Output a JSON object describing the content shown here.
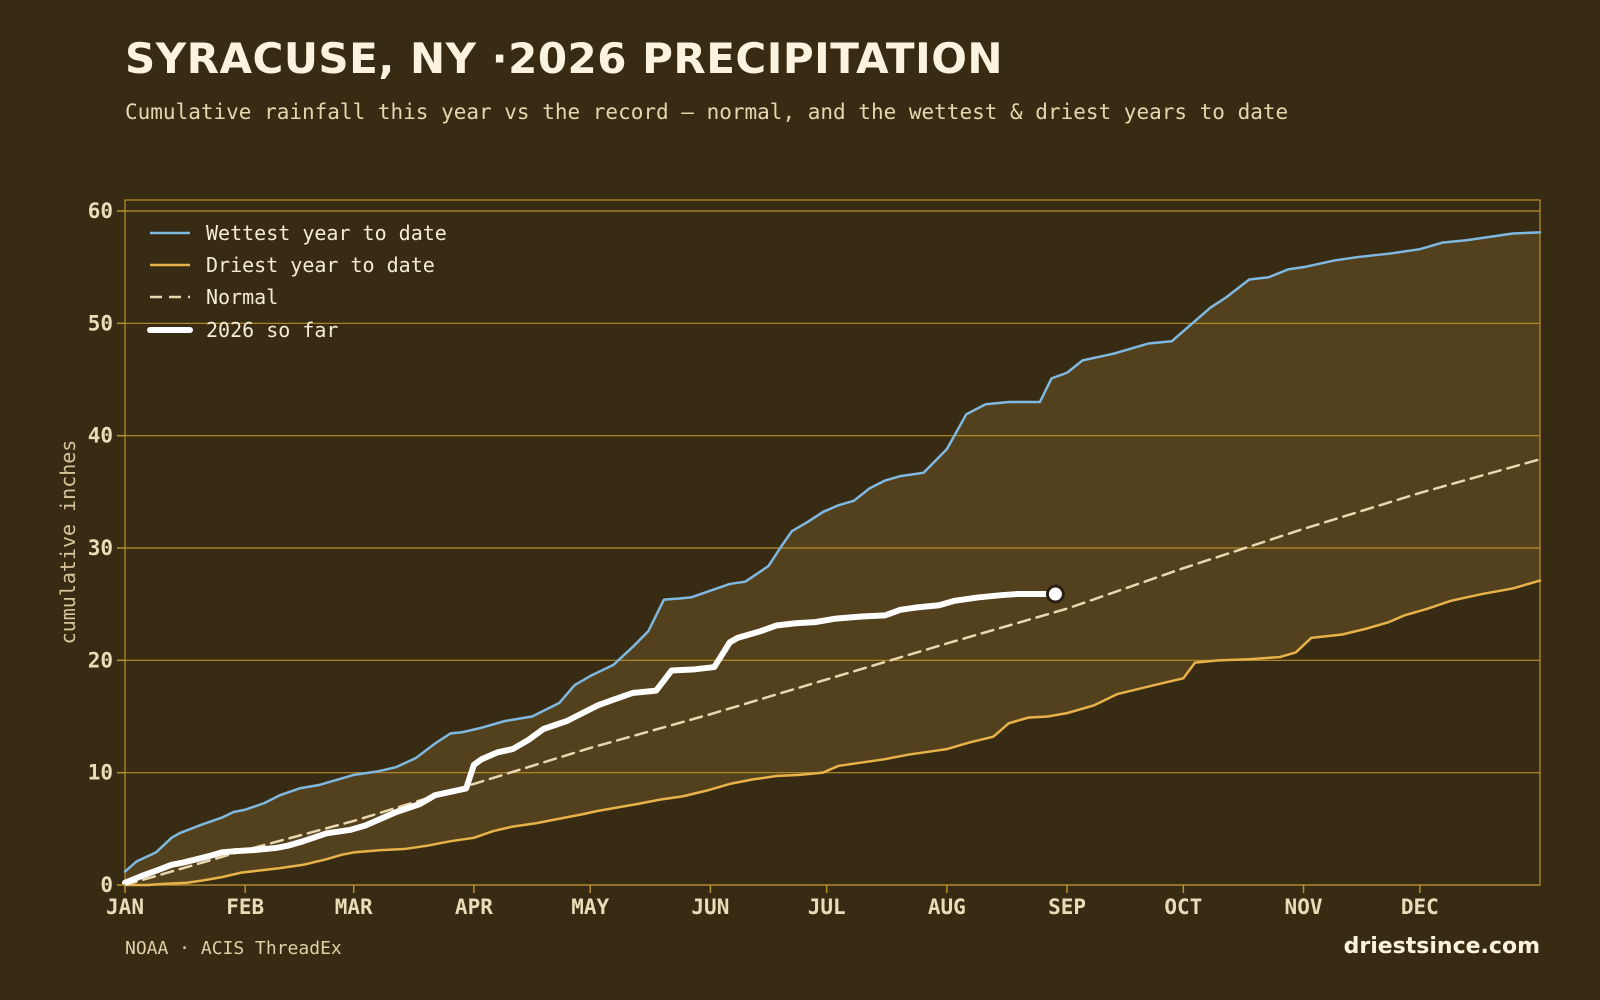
{
  "header": {
    "title": "SYRACUSE, NY ·2026 PRECIPITATION",
    "subtitle": "Cumulative rainfall this year vs the record — normal, and the wettest & driest years to date"
  },
  "footer": {
    "source": "NOAA · ACIS ThreadEx",
    "brand": "driestsince.com"
  },
  "colors": {
    "background": "#382b14",
    "band_fill": "#53401d",
    "grid": "#b8902e",
    "wettest": "#7fb8e0",
    "driest": "#e8b24a",
    "normal": "#e8d8b0",
    "current": "#ffffff"
  },
  "chart_data": {
    "type": "line",
    "title": "SYRACUSE, NY ·2026 PRECIPITATION",
    "xlabel": "",
    "ylabel": "cumulative inches",
    "xlim": [
      0,
      365
    ],
    "ylim": [
      0,
      60
    ],
    "yticks": [
      0,
      10,
      20,
      30,
      40,
      50,
      60
    ],
    "x_ticks": [
      {
        "label": "JAN",
        "day": 0
      },
      {
        "label": "FEB",
        "day": 31
      },
      {
        "label": "MAR",
        "day": 59
      },
      {
        "label": "APR",
        "day": 90
      },
      {
        "label": "MAY",
        "day": 120
      },
      {
        "label": "JUN",
        "day": 151
      },
      {
        "label": "JUL",
        "day": 181
      },
      {
        "label": "AUG",
        "day": 212
      },
      {
        "label": "SEP",
        "day": 243
      },
      {
        "label": "OCT",
        "day": 273
      },
      {
        "label": "NOV",
        "day": 304
      },
      {
        "label": "DEC",
        "day": 334
      }
    ],
    "grid": true,
    "legend": "top-left",
    "band": {
      "upper": "Wettest year to date",
      "lower": "Driest year to date"
    },
    "series": [
      {
        "name": "Wettest year to date",
        "style": "solid",
        "x": [
          0,
          3,
          8,
          12,
          14,
          20,
          25,
          28,
          31,
          36,
          40,
          45,
          50,
          56,
          59,
          65,
          70,
          75,
          80,
          84,
          87,
          92,
          98,
          105,
          112,
          116,
          120,
          126,
          131,
          135,
          139,
          143,
          146,
          151,
          156,
          160,
          166,
          169,
          172,
          176,
          180,
          184,
          188,
          192,
          196,
          200,
          206,
          212,
          217,
          222,
          228,
          236,
          239,
          243,
          247,
          255,
          264,
          270,
          280,
          284,
          290,
          295,
          300,
          304,
          312,
          318,
          326,
          334,
          340,
          346,
          352,
          358,
          365
        ],
        "y": [
          1.2,
          2.1,
          2.9,
          4.2,
          4.6,
          5.4,
          6.0,
          6.5,
          6.7,
          7.3,
          8.0,
          8.6,
          8.9,
          9.5,
          9.8,
          10.1,
          10.5,
          11.3,
          12.6,
          13.5,
          13.6,
          14.0,
          14.6,
          15.0,
          16.2,
          17.8,
          18.6,
          19.6,
          21.2,
          22.6,
          25.4,
          25.5,
          25.6,
          26.2,
          26.8,
          27.0,
          28.4,
          30.0,
          31.5,
          32.3,
          33.2,
          33.8,
          34.2,
          35.3,
          36.0,
          36.4,
          36.7,
          38.8,
          41.9,
          42.8,
          43.0,
          43.0,
          45.1,
          45.6,
          46.7,
          47.3,
          48.2,
          48.4,
          51.4,
          52.3,
          53.9,
          54.1,
          54.8,
          55.0,
          55.6,
          55.9,
          56.2,
          56.6,
          57.2,
          57.4,
          57.7,
          58.0,
          58.1
        ]
      },
      {
        "name": "Driest year to date",
        "style": "solid",
        "x": [
          0,
          6,
          10,
          16,
          20,
          25,
          30,
          35,
          40,
          46,
          52,
          56,
          59,
          66,
          72,
          78,
          84,
          90,
          95,
          100,
          106,
          112,
          118,
          122,
          127,
          132,
          138,
          144,
          150,
          156,
          162,
          168,
          174,
          180,
          184,
          190,
          196,
          202,
          206,
          212,
          218,
          224,
          228,
          233,
          238,
          243,
          250,
          256,
          262,
          268,
          273,
          276,
          282,
          290,
          298,
          302,
          306,
          314,
          320,
          326,
          330,
          336,
          342,
          350,
          358,
          365
        ],
        "y": [
          0.0,
          0.0,
          0.1,
          0.2,
          0.4,
          0.7,
          1.1,
          1.3,
          1.5,
          1.8,
          2.3,
          2.7,
          2.9,
          3.1,
          3.2,
          3.5,
          3.9,
          4.2,
          4.8,
          5.2,
          5.5,
          5.9,
          6.3,
          6.6,
          6.9,
          7.2,
          7.6,
          7.9,
          8.4,
          9.0,
          9.4,
          9.7,
          9.8,
          10.0,
          10.6,
          10.9,
          11.2,
          11.6,
          11.8,
          12.1,
          12.7,
          13.2,
          14.4,
          14.9,
          15.0,
          15.3,
          16.0,
          17.0,
          17.5,
          18.0,
          18.4,
          19.8,
          20.0,
          20.1,
          20.3,
          20.7,
          22.0,
          22.3,
          22.8,
          23.4,
          24.0,
          24.6,
          25.3,
          25.9,
          26.4,
          27.1
        ]
      },
      {
        "name": "Normal",
        "style": "dashed",
        "x": [
          0,
          31,
          59,
          90,
          120,
          151,
          181,
          212,
          243,
          273,
          304,
          334,
          365
        ],
        "y": [
          0.0,
          3.1,
          5.7,
          9.0,
          12.2,
          15.2,
          18.3,
          21.5,
          24.6,
          28.2,
          31.7,
          34.9,
          37.9
        ]
      },
      {
        "name": "2026 so far",
        "style": "solid-thick",
        "x": [
          0,
          5,
          9,
          12,
          15,
          22,
          25,
          28,
          33,
          39,
          42,
          46,
          52,
          58,
          62,
          66,
          70,
          76,
          80,
          84,
          88,
          90,
          92,
          96,
          100,
          104,
          108,
          114,
          118,
          122,
          126,
          131,
          137,
          141,
          147,
          152,
          156,
          158,
          160,
          164,
          168,
          173,
          178,
          183,
          190,
          196,
          200,
          204,
          210,
          214,
          220,
          226,
          230,
          236,
          240
        ],
        "y": [
          0.2,
          0.9,
          1.4,
          1.8,
          2.0,
          2.6,
          2.9,
          3.0,
          3.1,
          3.3,
          3.5,
          3.9,
          4.6,
          4.9,
          5.3,
          5.9,
          6.5,
          7.2,
          8.0,
          8.3,
          8.6,
          10.7,
          11.2,
          11.8,
          12.1,
          12.9,
          13.9,
          14.6,
          15.3,
          16.0,
          16.5,
          17.1,
          17.3,
          19.1,
          19.2,
          19.4,
          21.6,
          22.0,
          22.2,
          22.6,
          23.1,
          23.3,
          23.4,
          23.7,
          23.9,
          24.0,
          24.5,
          24.7,
          24.9,
          25.3,
          25.6,
          25.8,
          25.9,
          25.9,
          25.9
        ]
      }
    ],
    "current_marker": {
      "x": 240,
      "y": 25.9
    }
  }
}
